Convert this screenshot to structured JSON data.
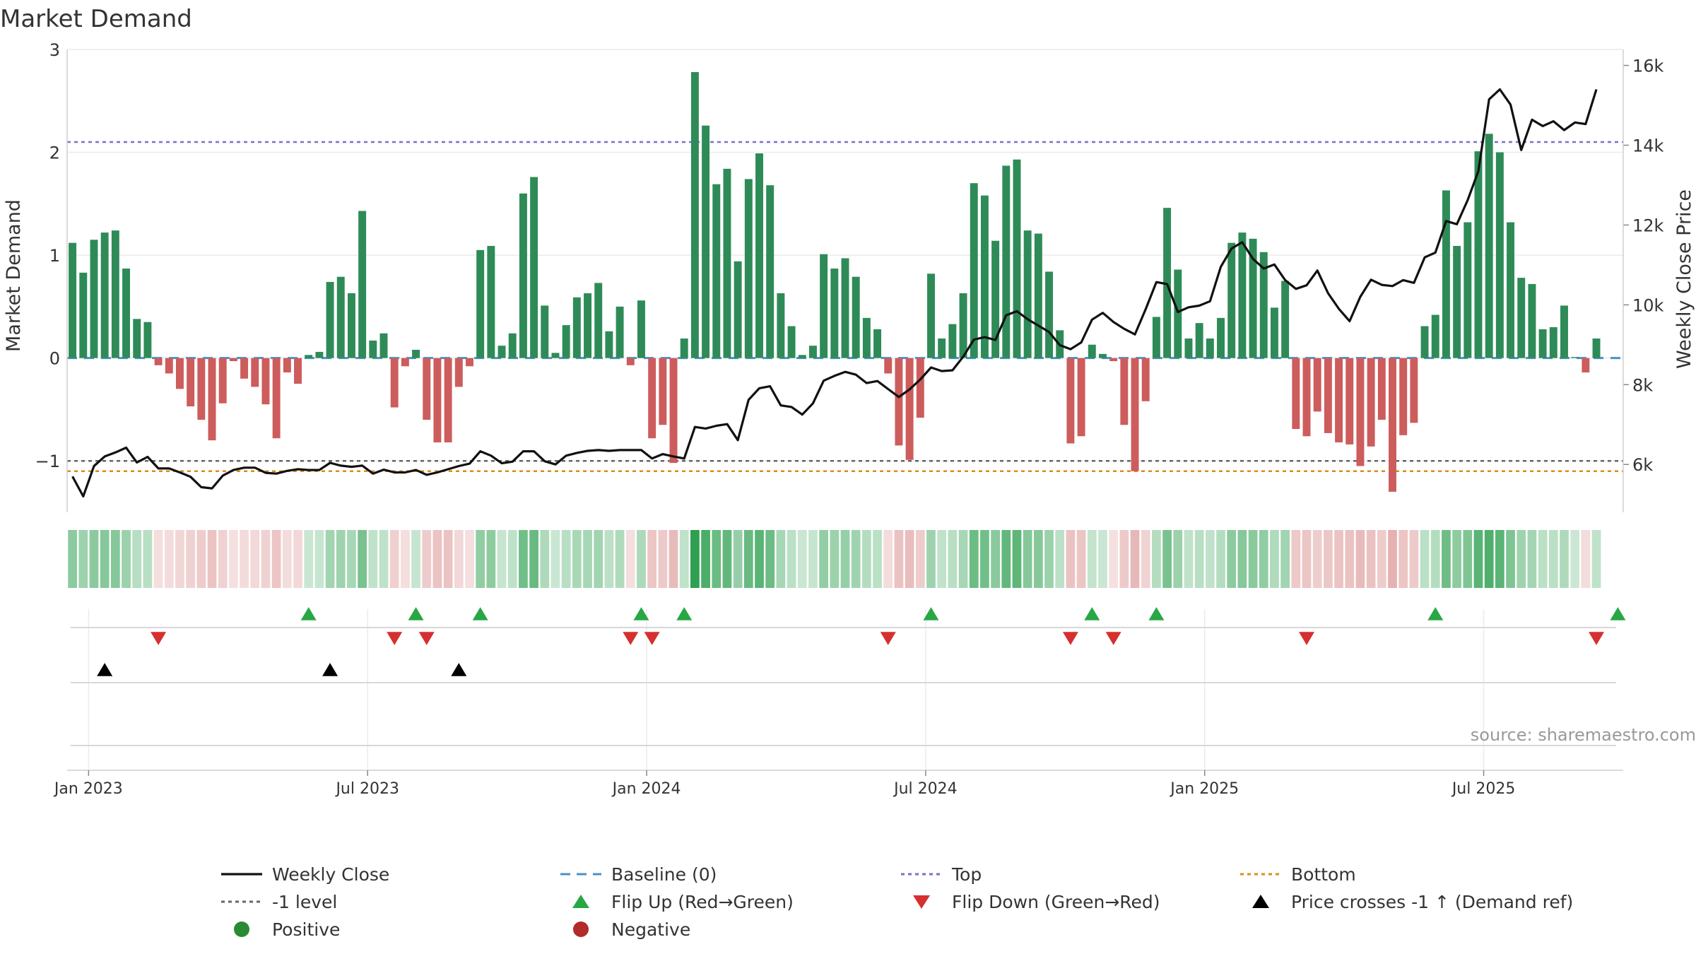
{
  "chart_data": {
    "type": "bar",
    "title": "Market Demand",
    "ylabel_left": "Market Demand",
    "ylabel_right": "Weekly Close Price",
    "ylim_left": [
      -1.5,
      3
    ],
    "yticks_left": [
      -1,
      0,
      1,
      2,
      3
    ],
    "ytick_labels_left": [
      "−1",
      "0",
      "1",
      "2",
      "3"
    ],
    "ylim_right": [
      4800,
      16400
    ],
    "yticks_right": [
      6000,
      8000,
      10000,
      12000,
      14000,
      16000
    ],
    "ytick_labels_right": [
      "6k",
      "8k",
      "10k",
      "12k",
      "14k",
      "16k"
    ],
    "x_tick_labels": [
      "Jan 2023",
      "Jul 2023",
      "Jan 2024",
      "Jul 2024",
      "Jan 2025",
      "Jul 2025"
    ],
    "x_tick_weeks": [
      1.5,
      27.5,
      53.5,
      79.5,
      105.5,
      131.5
    ],
    "x_range_weeks": [
      -0.5,
      144.5
    ],
    "reference_lines": {
      "top": 2.1,
      "bottom": -1.1,
      "minus_one": -1
    },
    "demand": [
      1.12,
      0.83,
      1.15,
      1.22,
      1.24,
      0.87,
      0.38,
      0.35,
      -0.07,
      -0.15,
      -0.3,
      -0.47,
      -0.6,
      -0.8,
      -0.44,
      -0.03,
      -0.2,
      -0.28,
      -0.45,
      -0.78,
      -0.14,
      -0.25,
      0.03,
      0.06,
      0.74,
      0.79,
      0.63,
      1.43,
      0.17,
      0.24,
      -0.48,
      -0.08,
      0.08,
      -0.6,
      -0.82,
      -0.82,
      -0.28,
      -0.08,
      1.05,
      1.09,
      0.12,
      0.24,
      1.6,
      1.76,
      0.51,
      0.05,
      0.32,
      0.59,
      0.63,
      0.73,
      0.26,
      0.5,
      -0.07,
      0.56,
      -0.78,
      -0.65,
      -1.02,
      0.19,
      2.78,
      2.26,
      1.69,
      1.84,
      0.94,
      1.74,
      1.99,
      1.68,
      0.63,
      0.31,
      0.03,
      0.12,
      1.01,
      0.87,
      0.97,
      0.79,
      0.39,
      0.28,
      -0.15,
      -0.85,
      -0.99,
      -0.58,
      0.82,
      0.19,
      0.33,
      0.63,
      1.7,
      1.58,
      1.14,
      1.87,
      1.93,
      1.24,
      1.21,
      0.84,
      0.27,
      -0.83,
      -0.76,
      0.13,
      0.04,
      -0.03,
      -0.65,
      -1.1,
      -0.42,
      0.4,
      1.46,
      0.86,
      0.19,
      0.34,
      0.19,
      0.39,
      1.12,
      1.22,
      1.16,
      1.03,
      0.49,
      0.75,
      -0.69,
      -0.76,
      -0.52,
      -0.73,
      -0.82,
      -0.84,
      -1.05,
      -0.86,
      -0.6,
      -1.3,
      -0.75,
      -0.63,
      0.31,
      0.42,
      1.63,
      1.09,
      1.32,
      2.01,
      2.18,
      2,
      1.32,
      0.78,
      0.72,
      0.28,
      0.3,
      0.51,
      0.01,
      -0.14,
      0.19
    ],
    "weekly_close": [
      5700,
      5200,
      5960,
      6200,
      6300,
      6420,
      6050,
      6190,
      5900,
      5900,
      5800,
      5690,
      5430,
      5400,
      5720,
      5860,
      5920,
      5920,
      5790,
      5770,
      5840,
      5880,
      5860,
      5860,
      6040,
      5970,
      5940,
      5970,
      5770,
      5870,
      5800,
      5800,
      5860,
      5740,
      5800,
      5880,
      5960,
      6020,
      6330,
      6220,
      6030,
      6070,
      6330,
      6330,
      6080,
      6000,
      6220,
      6290,
      6340,
      6360,
      6340,
      6360,
      6360,
      6360,
      6150,
      6260,
      6200,
      6150,
      6940,
      6900,
      6970,
      7010,
      6610,
      7620,
      7910,
      7960,
      7480,
      7440,
      7250,
      7530,
      8100,
      8220,
      8320,
      8250,
      8040,
      8090,
      7890,
      7690,
      7880,
      8130,
      8430,
      8340,
      8360,
      8700,
      9130,
      9190,
      9120,
      9740,
      9840,
      9640,
      9480,
      9320,
      8990,
      8890,
      9060,
      9630,
      9800,
      9570,
      9400,
      9260,
      9890,
      10570,
      10520,
      9820,
      9940,
      9980,
      10090,
      10950,
      11410,
      11570,
      11150,
      10910,
      11010,
      10620,
      10400,
      10490,
      10860,
      10290,
      9900,
      9590,
      10200,
      10630,
      10500,
      10470,
      10620,
      10550,
      11190,
      11310,
      12100,
      12020,
      12620,
      13350,
      15150,
      15400,
      15020,
      13880,
      14640,
      14480,
      14600,
      14380,
      14570,
      14530,
      15400
    ],
    "flip_up_weeks": [
      22,
      32,
      38,
      53,
      57,
      80,
      95,
      101,
      127,
      144
    ],
    "flip_down_weeks": [
      8,
      30,
      33,
      52,
      54,
      76,
      93,
      97,
      115,
      142
    ],
    "price_cross_weeks": [
      3,
      24,
      36
    ],
    "legend": [
      {
        "label": "Weekly Close",
        "kind": "line",
        "color": "#111111"
      },
      {
        "label": "Baseline (0)",
        "kind": "dash",
        "color": "#4a90c8"
      },
      {
        "label": "Top",
        "kind": "dot",
        "color": "#7b6fc9"
      },
      {
        "label": "Bottom",
        "kind": "dot",
        "color": "#d98c1a"
      },
      {
        "label": "-1 level",
        "kind": "dot",
        "color": "#666666"
      },
      {
        "label": "Flip Up (Red→Green)",
        "kind": "triup",
        "color": "#28a745"
      },
      {
        "label": "Flip Down (Green→Red)",
        "kind": "tridown",
        "color": "#d62f2f"
      },
      {
        "label": "Price crosses -1 ↑ (Demand ref)",
        "kind": "triup",
        "color": "#000000"
      },
      {
        "label": "Positive",
        "kind": "circle",
        "color": "#2a8a32"
      },
      {
        "label": "Negative",
        "kind": "circle",
        "color": "#b22a2a"
      }
    ],
    "source": "source: sharemaestro.com",
    "colors": {
      "positive": "#2e8b57",
      "negative": "#cd5c5c",
      "close": "#111111",
      "baseline": "#4a90c8",
      "top": "#7b6fc9",
      "bottom": "#d98c1a",
      "minus_one": "#666666",
      "grid": "#ebebeb",
      "flip_up": "#28a745",
      "flip_down": "#d62f2f"
    }
  }
}
